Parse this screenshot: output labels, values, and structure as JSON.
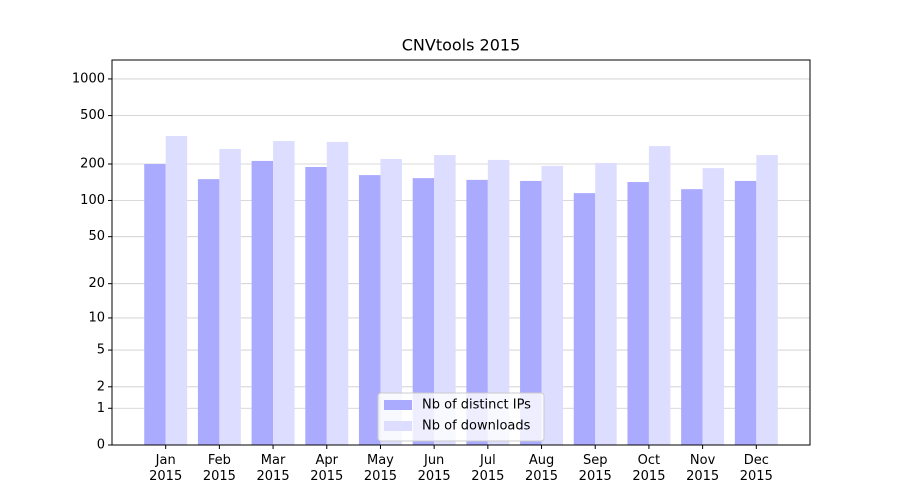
{
  "chart_data": {
    "type": "bar",
    "title": "CNVtools 2015",
    "categories": [
      "Jan\n2015",
      "Feb\n2015",
      "Mar\n2015",
      "Apr\n2015",
      "May\n2015",
      "Jun\n2015",
      "Jul\n2015",
      "Aug\n2015",
      "Sep\n2015",
      "Oct\n2015",
      "Nov\n2015",
      "Dec\n2015"
    ],
    "series": [
      {
        "name": "Nb of distinct IPs",
        "color": "#aaaaff",
        "values": [
          200,
          150,
          212,
          189,
          162,
          153,
          148,
          145,
          115,
          142,
          124,
          145
        ]
      },
      {
        "name": "Nb of downloads",
        "color": "#ddddff",
        "values": [
          340,
          266,
          309,
          304,
          220,
          237,
          216,
          193,
          204,
          281,
          185,
          237
        ]
      }
    ],
    "yscale": "log1p",
    "ylim": [
      0,
      1430
    ],
    "yticks": [
      0,
      1,
      2,
      5,
      10,
      20,
      50,
      100,
      200,
      500,
      1000
    ],
    "grid": true,
    "legend": "lower center"
  }
}
